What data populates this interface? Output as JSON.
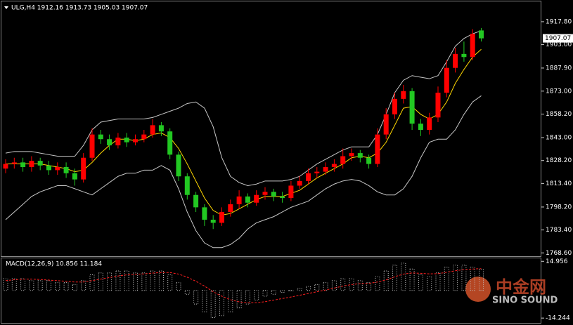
{
  "chart_data": [
    {
      "type": "candlestick",
      "title": "ULG,H4 1912.16 1913.73 1905.03 1907.07",
      "open": [
        1823,
        1826,
        1827,
        1824,
        1828,
        1825,
        1822,
        1824,
        1820,
        1816,
        1830,
        1845,
        1842,
        1838,
        1843,
        1840,
        1842,
        1845,
        1851,
        1847,
        1832,
        1818,
        1806,
        1798,
        1790,
        1788,
        1795,
        1800,
        1805,
        1801,
        1806,
        1808,
        1805,
        1804,
        1812,
        1815,
        1820,
        1821,
        1824,
        1826,
        1831,
        1833,
        1830,
        1826,
        1845,
        1858,
        1868,
        1873,
        1852,
        1848,
        1856,
        1872,
        1888,
        1897,
        1895,
        1912.16
      ],
      "high": [
        1829,
        1830,
        1830,
        1831,
        1830,
        1828,
        1827,
        1827,
        1823,
        1833,
        1849,
        1848,
        1845,
        1846,
        1846,
        1845,
        1848,
        1855,
        1853,
        1849,
        1834,
        1820,
        1808,
        1800,
        1793,
        1798,
        1803,
        1809,
        1807,
        1809,
        1811,
        1810,
        1808,
        1815,
        1818,
        1823,
        1824,
        1827,
        1829,
        1836,
        1836,
        1835,
        1832,
        1849,
        1862,
        1872,
        1877,
        1875,
        1855,
        1859,
        1876,
        1893,
        1901,
        1905,
        1913,
        1913.73
      ],
      "low": [
        1820,
        1823,
        1821,
        1821,
        1822,
        1819,
        1819,
        1817,
        1812,
        1814,
        1828,
        1839,
        1835,
        1836,
        1837,
        1838,
        1840,
        1843,
        1844,
        1829,
        1815,
        1803,
        1795,
        1786,
        1784,
        1786,
        1792,
        1797,
        1798,
        1799,
        1803,
        1802,
        1801,
        1802,
        1810,
        1813,
        1817,
        1819,
        1821,
        1823,
        1828,
        1827,
        1823,
        1824,
        1842,
        1855,
        1865,
        1848,
        1844,
        1845,
        1853,
        1869,
        1885,
        1892,
        1893,
        1905.03
      ],
      "close": [
        1826,
        1827,
        1824,
        1828,
        1825,
        1822,
        1824,
        1820,
        1816,
        1830,
        1845,
        1842,
        1838,
        1843,
        1840,
        1842,
        1845,
        1851,
        1847,
        1832,
        1818,
        1806,
        1798,
        1790,
        1788,
        1795,
        1800,
        1805,
        1801,
        1806,
        1808,
        1805,
        1804,
        1812,
        1815,
        1820,
        1821,
        1824,
        1826,
        1831,
        1833,
        1830,
        1826,
        1845,
        1858,
        1868,
        1873,
        1852,
        1848,
        1856,
        1872,
        1888,
        1897,
        1895,
        1910,
        1907.07
      ],
      "up_color": "#ff0000",
      "down_color": "#22c822",
      "overlays": [
        {
          "color": "#c8c8c8",
          "values": [
            1833,
            1834,
            1834,
            1834,
            1833,
            1832,
            1831,
            1831,
            1831,
            1838,
            1848,
            1853,
            1854,
            1855,
            1855,
            1855,
            1855,
            1856,
            1858,
            1860,
            1862,
            1865,
            1866,
            1862,
            1850,
            1830,
            1818,
            1814,
            1812,
            1813,
            1815,
            1815,
            1815,
            1816,
            1818,
            1822,
            1826,
            1829,
            1832,
            1835,
            1837,
            1837,
            1837,
            1845,
            1858,
            1872,
            1880,
            1883,
            1882,
            1881,
            1883,
            1892,
            1902,
            1907,
            1910,
            1912
          ]
        },
        {
          "color": "#c8c8c8",
          "values": [
            1790,
            1795,
            1800,
            1805,
            1808,
            1810,
            1812,
            1812,
            1810,
            1808,
            1806,
            1810,
            1814,
            1818,
            1820,
            1820,
            1822,
            1822,
            1825,
            1822,
            1810,
            1795,
            1783,
            1775,
            1772,
            1772,
            1774,
            1778,
            1784,
            1788,
            1790,
            1792,
            1795,
            1798,
            1800,
            1802,
            1806,
            1810,
            1813,
            1815,
            1816,
            1815,
            1812,
            1808,
            1806,
            1806,
            1810,
            1818,
            1830,
            1840,
            1842,
            1842,
            1848,
            1858,
            1866,
            1870
          ]
        },
        {
          "color": "#ffd700",
          "values": [
            1826,
            1826,
            1826,
            1826,
            1826,
            1825,
            1824,
            1823,
            1821,
            1822,
            1827,
            1833,
            1838,
            1842,
            1842,
            1841,
            1842,
            1845,
            1846,
            1843,
            1836,
            1826,
            1815,
            1804,
            1796,
            1793,
            1794,
            1797,
            1800,
            1803,
            1805,
            1805,
            1805,
            1807,
            1809,
            1813,
            1817,
            1820,
            1823,
            1826,
            1830,
            1831,
            1830,
            1833,
            1840,
            1851,
            1862,
            1863,
            1858,
            1855,
            1858,
            1866,
            1878,
            1887,
            1895,
            1900
          ]
        }
      ],
      "ylim": [
        1766,
        1930
      ],
      "yticks": [
        {
          "value": 1917.8,
          "label": "1917.80"
        },
        {
          "value": 1903,
          "label": "1903.00"
        },
        {
          "value": 1887.9,
          "label": "1887.90"
        },
        {
          "value": 1873,
          "label": "1873.00"
        },
        {
          "value": 1858.2,
          "label": "1858.20"
        },
        {
          "value": 1843,
          "label": "1843.00"
        },
        {
          "value": 1828.2,
          "label": "1828.20"
        },
        {
          "value": 1813.4,
          "label": "1813.40"
        },
        {
          "value": 1798.2,
          "label": "1798.20"
        },
        {
          "value": 1783.4,
          "label": "1783.40"
        },
        {
          "value": 1768.6,
          "label": "1768.60"
        }
      ],
      "last_price": 1907.07
    },
    {
      "type": "macd",
      "title": "MACD(12,26,9) 10.856 11.184",
      "values": [
        6,
        6,
        6,
        5,
        5,
        5,
        4,
        4,
        3,
        5,
        8,
        9,
        9,
        10,
        10,
        9,
        9,
        10,
        10,
        8,
        4,
        -2,
        -7,
        -11,
        -14,
        -13,
        -11,
        -9,
        -7,
        -5,
        -3,
        -2,
        -1,
        0,
        1,
        2,
        3,
        4,
        5,
        6,
        6,
        5,
        4,
        7,
        10,
        13,
        14,
        11,
        8,
        7,
        9,
        12,
        13,
        13,
        12,
        10.856
      ],
      "color": "#c8c8c8",
      "signal": {
        "color": "#ff2020",
        "values": [
          5,
          5.5,
          5.8,
          5.8,
          5.6,
          5.3,
          5,
          4.7,
          4.3,
          4.3,
          5,
          5.8,
          6.6,
          7.4,
          8,
          8.3,
          8.5,
          8.9,
          9.2,
          9.2,
          8.4,
          6.8,
          4.7,
          2.2,
          -0.7,
          -3,
          -4.8,
          -5.9,
          -6.4,
          -6.4,
          -5.8,
          -5,
          -4.2,
          -3.4,
          -2.5,
          -1.6,
          -0.7,
          0.2,
          1.2,
          2.2,
          3,
          3.5,
          3.6,
          4.3,
          5.4,
          7,
          8.4,
          9,
          8.8,
          8.5,
          8.6,
          9.3,
          10.1,
          10.7,
          11,
          11.184
        ]
      },
      "ylim": [
        -16,
        16.5
      ],
      "yticks": [
        14.956,
        -14.244
      ]
    }
  ],
  "watermark": {
    "cn": "中金网",
    "en": "SINO SOUND"
  }
}
